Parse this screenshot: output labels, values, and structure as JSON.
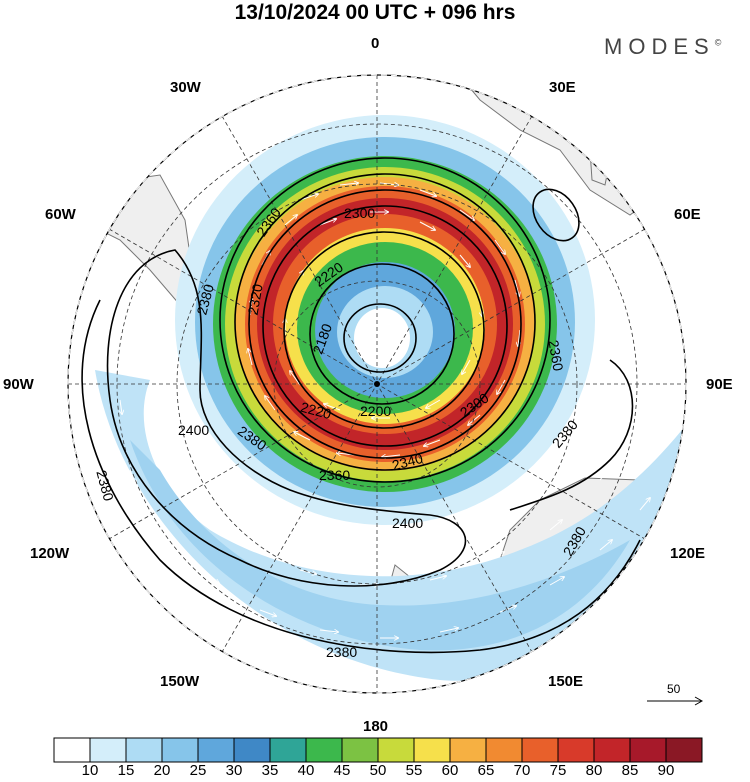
{
  "title": "13/10/2024  00 UTC  + 096 hrs",
  "brand": "MODES",
  "brand_mark": "©",
  "longitude_labels": {
    "n": "0",
    "ne": "30E",
    "e60": "60E",
    "e": "90E",
    "e120": "120E",
    "e150": "150E",
    "s": "180",
    "w150": "150W",
    "w120": "120W",
    "w": "90W",
    "w60": "60W",
    "w30": "30W"
  },
  "contour_labels": [
    "2180",
    "2200",
    "2220",
    "2220",
    "2300",
    "2300",
    "2320",
    "2340",
    "2360",
    "2360",
    "2380",
    "2380",
    "2380",
    "2380",
    "2380",
    "2400",
    "2400",
    "2360"
  ],
  "reference_vector": {
    "value": "50"
  },
  "colorbar": {
    "ticks": [
      "10",
      "15",
      "20",
      "25",
      "30",
      "35",
      "40",
      "45",
      "50",
      "55",
      "60",
      "65",
      "70",
      "75",
      "80",
      "85",
      "90"
    ],
    "colors": [
      "#ffffff",
      "#d4eefa",
      "#aedcf4",
      "#86c5ea",
      "#5fa7dc",
      "#3f88c6",
      "#2fa597",
      "#3cb84c",
      "#7cc243",
      "#c8da3b",
      "#f6e04b",
      "#f6b042",
      "#f18a31",
      "#e8602b",
      "#d83a2a",
      "#c22529",
      "#a7192a",
      "#8a1825"
    ]
  },
  "colors": {
    "land": "#efefef",
    "coast": "#777777",
    "contour": "#000000",
    "vectors": "#ffffff"
  }
}
